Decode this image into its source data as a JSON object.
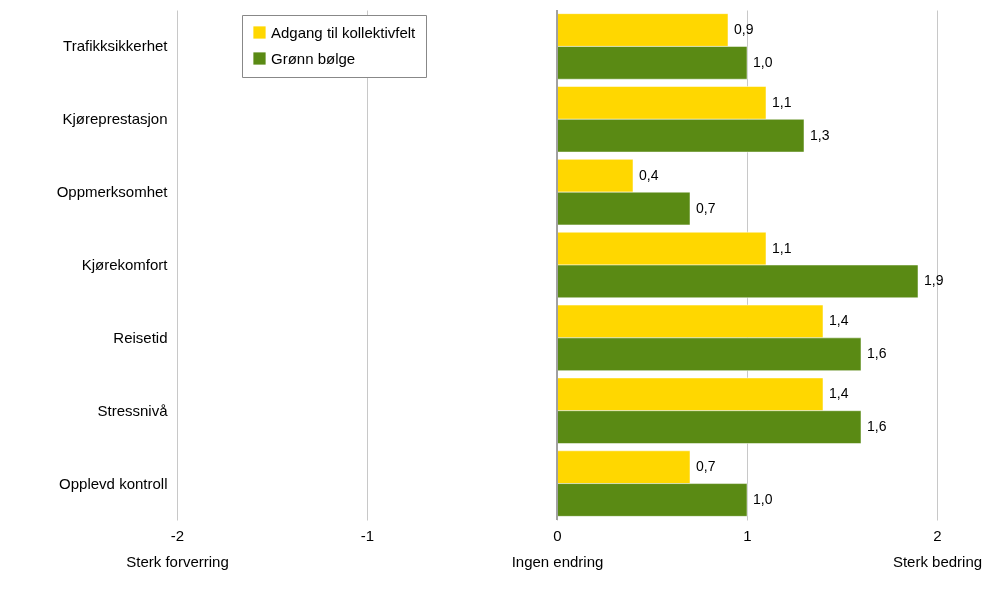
{
  "chart_data": {
    "type": "bar",
    "orientation": "horizontal",
    "categories": [
      "Trafikksikkerhet",
      "Kjøreprestasjon",
      "Oppmerksomhet",
      "Kjørekomfort",
      "Reisetid",
      "Stressnivå",
      "Opplevd kontroll"
    ],
    "series": [
      {
        "name": "Adgang til kollektivfelt",
        "color": "#ffd700",
        "values": [
          0.9,
          1.1,
          0.4,
          1.1,
          1.4,
          1.4,
          0.7
        ],
        "value_labels": [
          "0,9",
          "1,1",
          "0,4",
          "1,1",
          "1,4",
          "1,4",
          "0,7"
        ]
      },
      {
        "name": "Grønn bølge",
        "color": "#5a8a14",
        "values": [
          1.0,
          1.3,
          0.7,
          1.9,
          1.6,
          1.6,
          1.0
        ],
        "value_labels": [
          "1,0",
          "1,3",
          "0,7",
          "1,9",
          "1,6",
          "1,6",
          "1,0"
        ]
      }
    ],
    "xlim": [
      -2,
      2
    ],
    "xticks": [
      {
        "value": -2,
        "label": "-2\nSterk forverring"
      },
      -1,
      {
        "value": 0,
        "label": "0\nIngen endring"
      },
      1,
      {
        "value": 2,
        "label": "2\nSterk bedring"
      }
    ],
    "grid": "x",
    "legend": "top left"
  }
}
